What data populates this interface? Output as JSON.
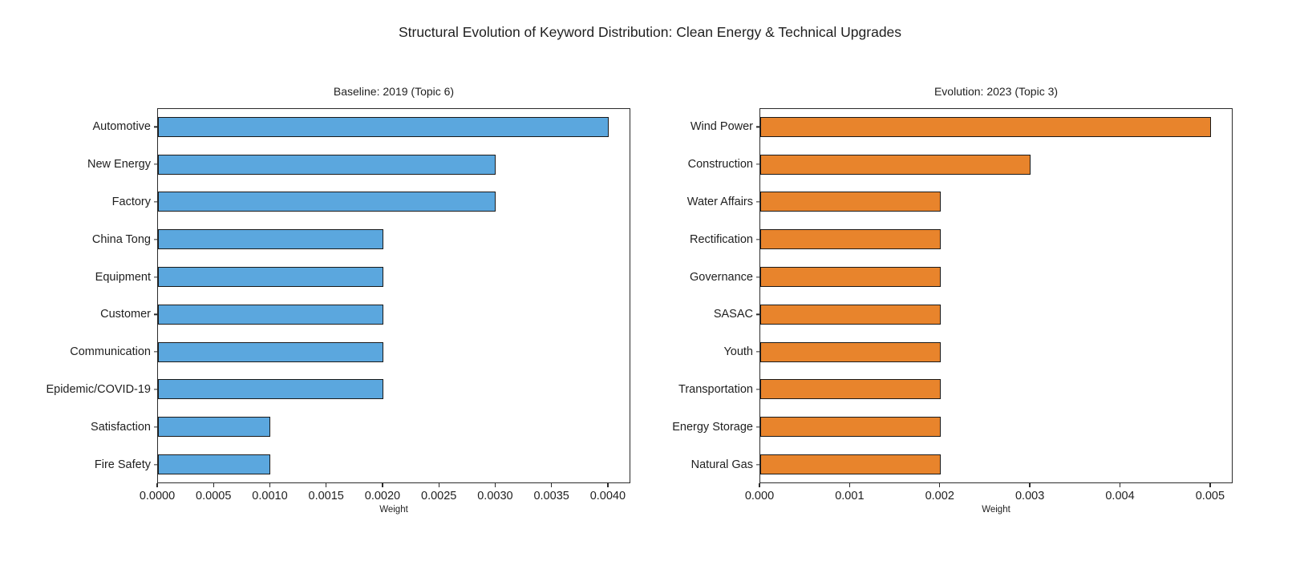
{
  "figure": {
    "title": "Structural Evolution of Keyword Distribution: Clean Energy & Technical Upgrades"
  },
  "chart_data": [
    {
      "type": "bar",
      "orientation": "horizontal",
      "title": "Baseline: 2019 (Topic 6)",
      "xlabel": "Weight",
      "categories": [
        "Automotive",
        "New Energy",
        "Factory",
        "China Tong",
        "Equipment",
        "Customer",
        "Communication",
        "Epidemic/COVID-19",
        "Satisfaction",
        "Fire Safety"
      ],
      "values": [
        0.004,
        0.003,
        0.003,
        0.002,
        0.002,
        0.002,
        0.002,
        0.002,
        0.001,
        0.001
      ],
      "xlim": [
        0,
        0.0042
      ],
      "xticks": [
        0.0,
        0.0005,
        0.001,
        0.0015,
        0.002,
        0.0025,
        0.003,
        0.0035,
        0.004
      ],
      "xtick_labels": [
        "0.0000",
        "0.0005",
        "0.0010",
        "0.0015",
        "0.0020",
        "0.0025",
        "0.0030",
        "0.0035",
        "0.0040"
      ],
      "grid": false,
      "legend": "none",
      "bar_color": "#5BA7DE",
      "bar_edge_color": "#1a1a1a"
    },
    {
      "type": "bar",
      "orientation": "horizontal",
      "title": "Evolution: 2023 (Topic 3)",
      "xlabel": "Weight",
      "categories": [
        "Wind Power",
        "Construction",
        "Water Affairs",
        "Rectification",
        "Governance",
        "SASAC",
        "Youth",
        "Transportation",
        "Energy Storage",
        "Natural Gas"
      ],
      "values": [
        0.005,
        0.003,
        0.002,
        0.002,
        0.002,
        0.002,
        0.002,
        0.002,
        0.002,
        0.002
      ],
      "xlim": [
        0,
        0.00525
      ],
      "xticks": [
        0.0,
        0.001,
        0.002,
        0.003,
        0.004,
        0.005
      ],
      "xtick_labels": [
        "0.000",
        "0.001",
        "0.002",
        "0.003",
        "0.004",
        "0.005"
      ],
      "grid": false,
      "legend": "none",
      "bar_color": "#E8842C",
      "bar_edge_color": "#1a1a1a"
    }
  ]
}
